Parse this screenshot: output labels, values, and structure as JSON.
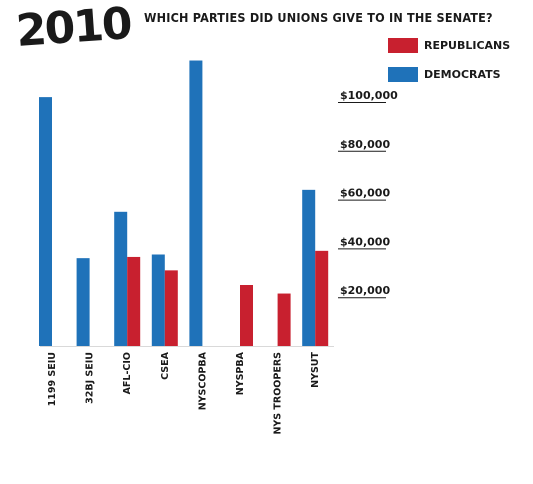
{
  "header": {
    "year": "2010",
    "title": "WHICH PARTIES DID UNIONS GIVE TO IN THE SENATE?"
  },
  "legend": {
    "items": [
      {
        "label": "REPUBLICANS",
        "color": "#c8202f"
      },
      {
        "label": "DEMOCRATS",
        "color": "#1f72b9"
      }
    ]
  },
  "chart_data": {
    "type": "bar",
    "title": "WHICH PARTIES DID UNIONS GIVE TO IN THE SENATE?",
    "categories": [
      "1199 SEIU",
      "32BJ SEIU",
      "AFL-CIO",
      "CSEA",
      "NYSCOPBA",
      "NYSPBA",
      "NYS TROOPERS",
      "NYSUT"
    ],
    "series": [
      {
        "name": "DEMOCRATS",
        "color": "#1f72b9",
        "values": [
          102000,
          36000,
          55000,
          37500,
          117000,
          0,
          0,
          64000
        ]
      },
      {
        "name": "REPUBLICANS",
        "color": "#c8202f",
        "values": [
          0,
          0,
          36500,
          31000,
          0,
          25000,
          21500,
          39000
        ]
      }
    ],
    "yticks": [
      "$20,000",
      "$40,000",
      "$60,000",
      "$80,000",
      "$100,000"
    ],
    "ytick_values": [
      20000,
      40000,
      60000,
      80000,
      100000
    ],
    "ylim": [
      0,
      120000
    ],
    "xlabel": "",
    "ylabel": "",
    "grid": false,
    "legend_position": "top-right",
    "yaxis_position": "right"
  }
}
